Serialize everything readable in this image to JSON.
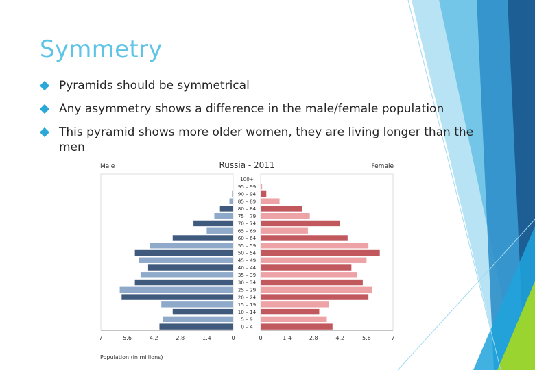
{
  "slide": {
    "title": "Symmetry",
    "bullets": [
      "Pyramids should be symmetrical",
      "Any asymmetry shows a difference in the male/female population",
      "This pyramid shows more older women, they are living longer than the men"
    ]
  },
  "colors": {
    "accent": "#5ec4e6",
    "bullet": "#2aa8d8",
    "male_dark": "#3f5a7d",
    "male_light": "#8ea9c9",
    "female_dark": "#c0585e",
    "female_light": "#eda3a6"
  },
  "chart_data": {
    "type": "bar",
    "title": "Russia - 2011",
    "left_label": "Male",
    "right_label": "Female",
    "xlabel": "Population (in millions)",
    "xlim": [
      0,
      7
    ],
    "xticks_left": [
      "7",
      "5.6",
      "4.2",
      "2.8",
      "1.4",
      "0"
    ],
    "xticks_right": [
      "0",
      "1.4",
      "2.8",
      "4.2",
      "5.6",
      "7"
    ],
    "categories": [
      "0 – 4",
      "5 – 9",
      "10 – 14",
      "15 – 19",
      "20 – 24",
      "25 – 29",
      "30 – 34",
      "35 – 39",
      "40 – 44",
      "45 – 49",
      "50 – 54",
      "55 – 59",
      "60 – 64",
      "65 – 69",
      "70 – 74",
      "75 – 79",
      "80 – 84",
      "85 – 89",
      "90 – 94",
      "95 – 99",
      "100+"
    ],
    "series": [
      {
        "name": "Male",
        "values": [
          3.9,
          3.7,
          3.2,
          3.8,
          5.9,
          6.0,
          5.2,
          4.9,
          4.5,
          5.0,
          5.2,
          4.4,
          3.2,
          1.4,
          2.1,
          1.0,
          0.7,
          0.2,
          0.05,
          0.02,
          0.01
        ]
      },
      {
        "name": "Female",
        "values": [
          3.8,
          3.5,
          3.1,
          3.6,
          5.7,
          5.9,
          5.4,
          5.1,
          4.8,
          5.6,
          6.3,
          5.7,
          4.6,
          2.5,
          4.2,
          2.6,
          2.2,
          1.0,
          0.3,
          0.08,
          0.02
        ]
      }
    ]
  }
}
